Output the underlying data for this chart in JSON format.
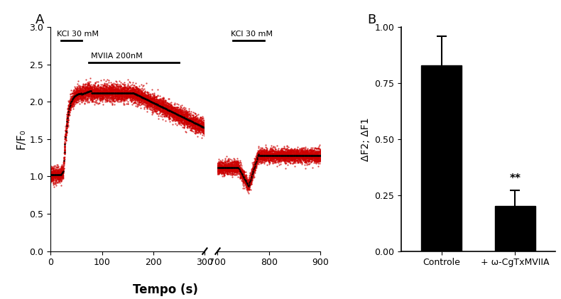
{
  "panel_a_label": "A",
  "panel_b_label": "B",
  "ylabel_left": "F/F₀",
  "xlabel": "Tempo (s)",
  "bar_ylabel": "ΔF2; ΔF1",
  "bar_categories": [
    "Controle",
    "+ ω-CgTxMVIIA"
  ],
  "bar_values": [
    0.83,
    0.2
  ],
  "bar_errors": [
    0.13,
    0.07
  ],
  "bar_color": "#000000",
  "bar_ylim": [
    0,
    1.0
  ],
  "bar_yticks": [
    0.0,
    0.25,
    0.5,
    0.75,
    1.0
  ],
  "significance": "**",
  "kcl_label1": "KCl 30 mM",
  "kcl_label2": "KCl 30 mM",
  "mviia_label": "MVIIA 200nM",
  "ylim_left": [
    0.0,
    3.0
  ],
  "yticks_left": [
    0.0,
    0.5,
    1.0,
    1.5,
    2.0,
    2.5,
    3.0
  ],
  "bg_color": "#ffffff",
  "line_color_black": "#000000",
  "line_color_red": "#cc0000",
  "n_red_traces": 20,
  "noise_scale1": 0.055,
  "noise_scale2": 0.045
}
